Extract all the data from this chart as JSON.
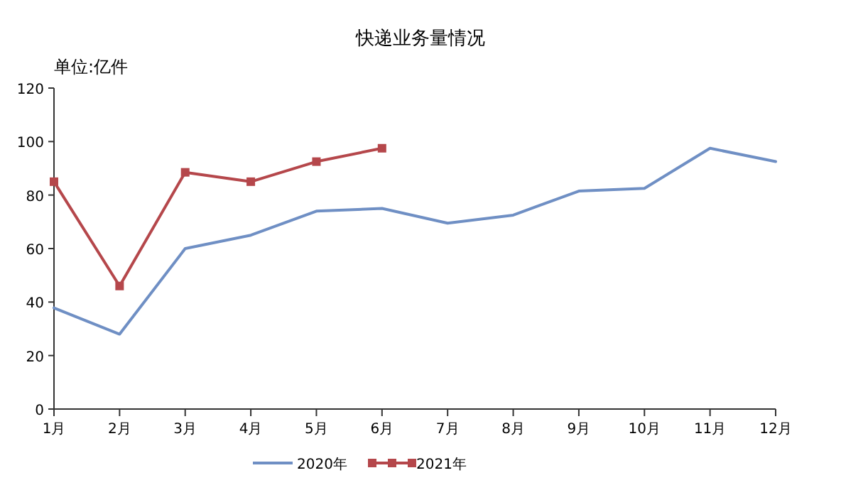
{
  "chart_data": {
    "type": "line",
    "title": "快递业务量情况",
    "ylabel": "单位:亿件",
    "categories": [
      "1月",
      "2月",
      "3月",
      "4月",
      "5月",
      "6月",
      "7月",
      "8月",
      "9月",
      "10月",
      "11月",
      "12月"
    ],
    "series": [
      {
        "name": "2020年",
        "color": "#6f8fc4",
        "marker": "none",
        "values": [
          37.8,
          28,
          60,
          65,
          74,
          75,
          69.5,
          72.5,
          81.5,
          82.5,
          97.5,
          92.5
        ]
      },
      {
        "name": "2021年",
        "color": "#b5474b",
        "marker": "square",
        "values": [
          85,
          46,
          88.5,
          85,
          92.5,
          97.5,
          null,
          null,
          null,
          null,
          null,
          null
        ]
      }
    ],
    "ylim": [
      0,
      120
    ],
    "yticks": [
      0,
      20,
      40,
      60,
      80,
      100,
      120
    ],
    "grid": false,
    "legend": "bottom"
  }
}
